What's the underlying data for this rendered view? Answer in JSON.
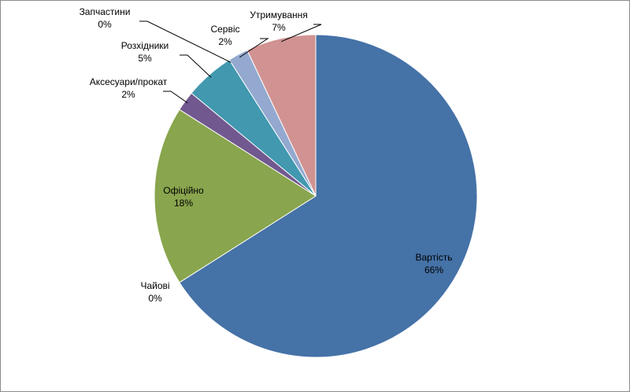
{
  "chart_data": {
    "type": "pie",
    "title": "",
    "slices": [
      {
        "label": "Вартість",
        "value": 66,
        "value_label": "66%",
        "color": "#4572a7"
      },
      {
        "label": "Чайові",
        "value": 0,
        "value_label": "0%",
        "color": "#aa4643"
      },
      {
        "label": "Офіційно",
        "value": 18,
        "value_label": "18%",
        "color": "#89a54e"
      },
      {
        "label": "Аксесуари/прокат",
        "value": 2,
        "value_label": "2%",
        "color": "#71588f"
      },
      {
        "label": "Розхідники",
        "value": 5,
        "value_label": "5%",
        "color": "#4198af"
      },
      {
        "label": "Запчастини",
        "value": 0,
        "value_label": "0%",
        "color": "#db843d"
      },
      {
        "label": "Сервіс",
        "value": 2,
        "value_label": "2%",
        "color": "#93a9cf"
      },
      {
        "label": "Утримування",
        "value": 7,
        "value_label": "7%",
        "color": "#d19392"
      }
    ],
    "start_angle_deg": 0,
    "direction": "clockwise",
    "legend": "none",
    "data_labels": "category and percent"
  }
}
